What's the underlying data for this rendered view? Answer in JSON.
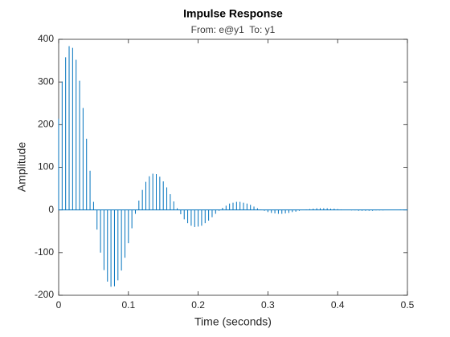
{
  "chart_data": {
    "type": "stem",
    "title": "Impulse Response",
    "subtitle": "From: e@y1  To: y1",
    "xlabel": "Time (seconds)",
    "ylabel": "Amplitude",
    "x": [
      0,
      0.005,
      0.01,
      0.015,
      0.02,
      0.025,
      0.03,
      0.035,
      0.04,
      0.045,
      0.05,
      0.055,
      0.06,
      0.065,
      0.07,
      0.075,
      0.08,
      0.085,
      0.09,
      0.095,
      0.1,
      0.105,
      0.11,
      0.115,
      0.12,
      0.125,
      0.13,
      0.135,
      0.14,
      0.145,
      0.15,
      0.155,
      0.16,
      0.165,
      0.17,
      0.175,
      0.18,
      0.185,
      0.19,
      0.195,
      0.2,
      0.205,
      0.21,
      0.215,
      0.22,
      0.225,
      0.23,
      0.235,
      0.24,
      0.245,
      0.25,
      0.255,
      0.26,
      0.265,
      0.27,
      0.275,
      0.28,
      0.285,
      0.29,
      0.295,
      0.3,
      0.305,
      0.31,
      0.315,
      0.32,
      0.325,
      0.33,
      0.335,
      0.34,
      0.345,
      0.35,
      0.355,
      0.36,
      0.365,
      0.37,
      0.375,
      0.38,
      0.385,
      0.39,
      0.395,
      0.4,
      0.405,
      0.41,
      0.415,
      0.42,
      0.425,
      0.43,
      0.435,
      0.44,
      0.445,
      0.45,
      0.455,
      0.46,
      0.465,
      0.47,
      0.475,
      0.48,
      0.485,
      0.49,
      0.495,
      0.5
    ],
    "values": [
      214,
      301,
      358,
      384,
      380,
      352,
      303,
      239,
      167,
      92,
      19,
      -46,
      -100,
      -141,
      -168,
      -180,
      -179,
      -165,
      -142,
      -112,
      -78,
      -43,
      -9,
      22,
      47,
      66,
      79,
      85,
      84,
      78,
      67,
      53,
      37,
      20,
      4,
      -10,
      -22,
      -31,
      -37,
      -40,
      -39,
      -37,
      -31,
      -25,
      -17,
      -9,
      -2,
      5,
      10,
      15,
      17,
      19,
      19,
      17,
      15,
      12,
      8,
      4,
      1,
      -2,
      -5,
      -7,
      -8,
      -9,
      -9,
      -8,
      -7,
      -5,
      -4,
      -2,
      0,
      1,
      2,
      3,
      4,
      4,
      4,
      4,
      3,
      3,
      2,
      1,
      0,
      0,
      -1,
      -1,
      -2,
      -2,
      -2,
      -2,
      -2,
      -1,
      -1,
      -1,
      0,
      0,
      0,
      0,
      1,
      1,
      1
    ],
    "color": "#0072bd",
    "xlim": [
      0,
      0.5
    ],
    "xticks": [
      0,
      0.1,
      0.2,
      0.3,
      0.4,
      0.5
    ],
    "ylim": [
      -200,
      400
    ],
    "yticks": [
      -200,
      -100,
      0,
      100,
      200,
      300,
      400
    ],
    "grid": false
  }
}
